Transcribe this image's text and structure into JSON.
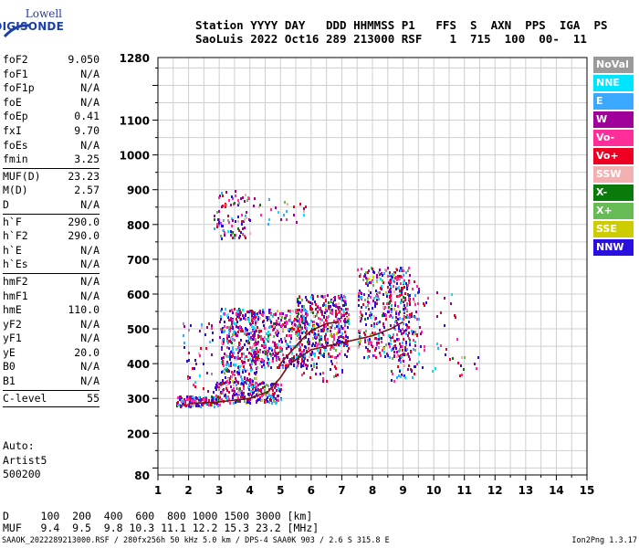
{
  "logo": {
    "line1": "Lowell",
    "line2": "DIGISONDE"
  },
  "header": {
    "labels": "Station YYYY DAY   DDD HHMMSS P1   FFS  S  AXN  PPS  IGA  PS",
    "values": "SaoLuis 2022 Oct16 289 213000 RSF    1  715  100  00-  11"
  },
  "params": [
    {
      "k": "foF2",
      "v": "9.050"
    },
    {
      "k": "foF1",
      "v": "N/A"
    },
    {
      "k": "foF1p",
      "v": "N/A"
    },
    {
      "k": "foE",
      "v": "N/A"
    },
    {
      "k": "foEp",
      "v": "0.41"
    },
    {
      "k": "fxI",
      "v": "9.70"
    },
    {
      "k": "foEs",
      "v": "N/A"
    },
    {
      "k": "fmin",
      "v": "3.25"
    },
    {
      "sep": true
    },
    {
      "k": "MUF(D)",
      "v": "23.23"
    },
    {
      "k": "M(D)",
      "v": "2.57"
    },
    {
      "k": "D",
      "v": "N/A"
    },
    {
      "sep": true
    },
    {
      "k": "h`F",
      "v": "290.0"
    },
    {
      "k": "h`F2",
      "v": "290.0"
    },
    {
      "k": "h`E",
      "v": "N/A"
    },
    {
      "k": "h`Es",
      "v": "N/A"
    },
    {
      "sep": true
    },
    {
      "k": "hmF2",
      "v": "N/A"
    },
    {
      "k": "hmF1",
      "v": "N/A"
    },
    {
      "k": "hmE",
      "v": "110.0"
    },
    {
      "k": "yF2",
      "v": "N/A"
    },
    {
      "k": "yF1",
      "v": "N/A"
    },
    {
      "k": "yE",
      "v": "20.0"
    },
    {
      "k": "B0",
      "v": "N/A"
    },
    {
      "k": "B1",
      "v": "N/A"
    },
    {
      "sep": true
    },
    {
      "k": "C-level",
      "v": "55"
    },
    {
      "sep": true
    }
  ],
  "auto": {
    "line1": "Auto:",
    "line2": "Artist5",
    "line3": "500200"
  },
  "muf_table": {
    "d_row": "D     100  200  400  600  800 1000 1500 3000 [km]",
    "muf_row": "MUF   9.4  9.5  9.8 10.3 11.1 12.2 15.3 23.2 [MHz]"
  },
  "footer": {
    "left": "SAAOK_2022289213000.RSF / 280fx256h 50 kHz 5.0 km / DPS-4 SAA0K 903 / 2.6 S 315.8 E",
    "right": "Ion2Png 1.3.17"
  },
  "legend": [
    {
      "name": "NoVal",
      "color": "#9a9a9a"
    },
    {
      "name": "NNE",
      "color": "#00e5ff"
    },
    {
      "name": "E",
      "color": "#3aa8ff"
    },
    {
      "name": "W",
      "color": "#a0009a"
    },
    {
      "name": "Vo-",
      "color": "#ff2d9a"
    },
    {
      "name": "Vo+",
      "color": "#ee0022"
    },
    {
      "name": "SSW",
      "color": "#f3b0b0"
    },
    {
      "name": "X-",
      "color": "#0a7a0a"
    },
    {
      "name": "X+",
      "color": "#66bb55"
    },
    {
      "name": "SSE",
      "color": "#cccc00"
    },
    {
      "name": "NNW",
      "color": "#2a10e0"
    }
  ],
  "chart_data": {
    "type": "scatter",
    "xlim": [
      1,
      15
    ],
    "ylim": [
      80,
      1280
    ],
    "xticks": [
      "1",
      "2",
      "3",
      "4",
      "5",
      "6",
      "7",
      "8",
      "9",
      "10",
      "11",
      "12",
      "13",
      "14",
      "15"
    ],
    "yticks": [
      {
        "v": 80,
        "label": "80"
      },
      {
        "v": 200,
        "label": "200"
      },
      {
        "v": 300,
        "label": "300"
      },
      {
        "v": 400,
        "label": "400"
      },
      {
        "v": 500,
        "label": "500"
      },
      {
        "v": 600,
        "label": "600"
      },
      {
        "v": 700,
        "label": "700"
      },
      {
        "v": 800,
        "label": "800"
      },
      {
        "v": 900,
        "label": "900"
      },
      {
        "v": 1000,
        "label": "1000"
      },
      {
        "v": 1100,
        "label": "1100"
      },
      {
        "v": 1280,
        "label": "1280"
      }
    ],
    "grid": true,
    "trace_upper": [
      [
        5.0,
        400
      ],
      [
        5.3,
        430
      ],
      [
        5.7,
        470
      ],
      [
        6.0,
        495
      ],
      [
        6.5,
        515
      ],
      [
        6.9,
        520
      ]
    ],
    "trace_lower": [
      [
        2.0,
        285
      ],
      [
        3.0,
        290
      ],
      [
        4.0,
        300
      ],
      [
        4.6,
        320
      ],
      [
        5.0,
        360
      ],
      [
        5.3,
        400
      ],
      [
        6.0,
        440
      ],
      [
        7.0,
        460
      ],
      [
        8.0,
        480
      ],
      [
        8.6,
        500
      ],
      [
        9.0,
        520
      ]
    ],
    "clusters": [
      {
        "x": [
          1.6,
          3.0
        ],
        "y": [
          280,
          310
        ],
        "n": 140
      },
      {
        "x": [
          2.8,
          5.0
        ],
        "y": [
          290,
          350
        ],
        "n": 260
      },
      {
        "x": [
          3.0,
          4.2
        ],
        "y": [
          350,
          560
        ],
        "n": 340
      },
      {
        "x": [
          4.0,
          5.8
        ],
        "y": [
          390,
          560
        ],
        "n": 420
      },
      {
        "x": [
          5.5,
          7.2
        ],
        "y": [
          420,
          600
        ],
        "n": 420
      },
      {
        "x": [
          7.5,
          9.2
        ],
        "y": [
          420,
          680
        ],
        "n": 360
      },
      {
        "x": [
          8.5,
          9.5
        ],
        "y": [
          350,
          660
        ],
        "n": 160
      },
      {
        "x": [
          2.8,
          4.0
        ],
        "y": [
          760,
          900
        ],
        "n": 90
      },
      {
        "x": [
          4.0,
          5.8
        ],
        "y": [
          800,
          880
        ],
        "n": 25
      },
      {
        "x": [
          9.5,
          10.8
        ],
        "y": [
          380,
          620
        ],
        "n": 30
      },
      {
        "x": [
          10.5,
          11.5
        ],
        "y": [
          370,
          430
        ],
        "n": 12
      },
      {
        "x": [
          1.8,
          2.8
        ],
        "y": [
          300,
          520
        ],
        "n": 45
      },
      {
        "x": [
          5.5,
          7.0
        ],
        "y": [
          350,
          420
        ],
        "n": 35
      }
    ]
  }
}
